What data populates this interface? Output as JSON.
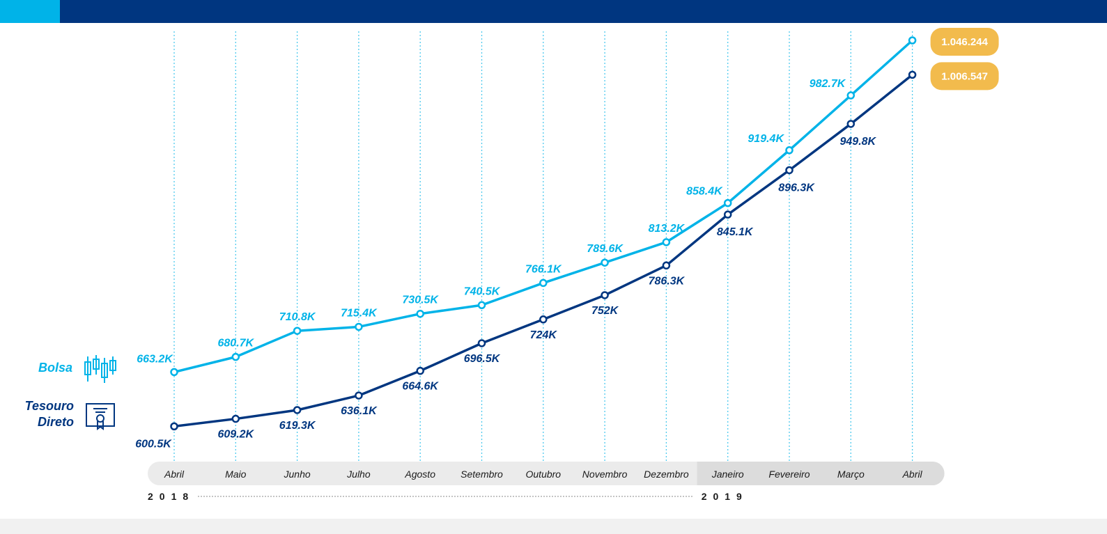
{
  "colors": {
    "header": "#003680",
    "header_accent": "#00b3e8",
    "bolsa": "#00b3e8",
    "tesouro": "#003680",
    "badge": "#f2bb4d",
    "axis_band": "#ebebeb",
    "axis_band_dark": "#dcdcdc"
  },
  "legend": {
    "bolsa": {
      "label": "Bolsa",
      "icon": "candlestick-icon"
    },
    "tesouro": {
      "label_line1": "Tesouro",
      "label_line2": "Direto",
      "icon": "certificate-icon"
    }
  },
  "chart_data": {
    "type": "line",
    "categories": [
      "Abril",
      "Maio",
      "Junho",
      "Julho",
      "Agosto",
      "Setembro",
      "Outubro",
      "Novembro",
      "Dezembro",
      "Janeiro",
      "Fevereiro",
      "Março",
      "Abril"
    ],
    "years": [
      {
        "label": "2018",
        "start": 0,
        "end": 8
      },
      {
        "label": "2019",
        "start": 9,
        "end": 12
      }
    ],
    "ylim": [
      600000,
      1046244
    ],
    "grid": "vertical-dotted",
    "series": [
      {
        "name": "Bolsa",
        "values": [
          663200,
          680700,
          710800,
          715400,
          730500,
          740500,
          766100,
          789600,
          813200,
          858400,
          919400,
          982700,
          1046244
        ],
        "labels": [
          "663.2K",
          "680.7K",
          "710.8K",
          "715.4K",
          "730.5K",
          "740.5K",
          "766.1K",
          "789.6K",
          "813.2K",
          "858.4K",
          "919.4K",
          "982.7K",
          "1.046.244"
        ]
      },
      {
        "name": "Tesouro Direto",
        "values": [
          600500,
          609200,
          619300,
          636100,
          664600,
          696500,
          724000,
          752000,
          786300,
          845100,
          896300,
          949800,
          1006547
        ],
        "labels": [
          "600.5K",
          "609.2K",
          "619.3K",
          "636.1K",
          "664.6K",
          "696.5K",
          "724K",
          "752K",
          "786.3K",
          "845.1K",
          "896.3K",
          "949.8K",
          "1.006.547"
        ]
      }
    ]
  }
}
